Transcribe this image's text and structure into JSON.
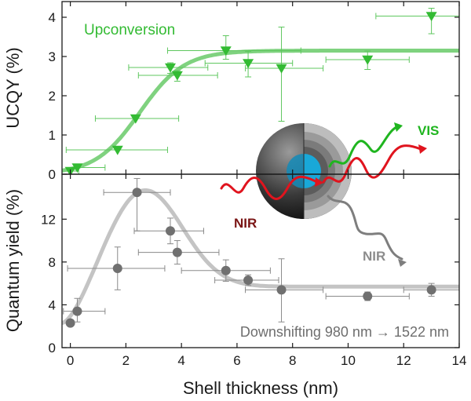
{
  "colors": {
    "green": "#33bb33",
    "green_fit": "#7fd27f",
    "gray": "#707070",
    "gray_fit": "#c4c4c4",
    "dark_red": "#7a1414",
    "red": "#e0141e",
    "vis_green": "#1fb51f",
    "core_blue": "#19a8d8"
  },
  "chart_data": [
    {
      "type": "scatter",
      "panel": "top",
      "xlabel": "Shell thickness (nm)",
      "ylabel": "UCQY (%)",
      "xlim": [
        -0.3,
        14
      ],
      "ylim": [
        0,
        4.4
      ],
      "xticks": [
        0,
        2,
        4,
        6,
        8,
        10,
        12,
        14
      ],
      "yticks": [
        0,
        1,
        2,
        3,
        4
      ],
      "annotation": "Upconversion",
      "series": [
        {
          "marker": "triangle-down",
          "color": "#33bb33",
          "points": [
            {
              "x": 0,
              "y": 0.08,
              "xerr": [
                0,
                0.3
              ],
              "yerr": [
                0,
                0
              ]
            },
            {
              "x": 0.25,
              "y": 0.17,
              "xerr": [
                0,
                1.0
              ],
              "yerr": [
                0,
                0
              ]
            },
            {
              "x": 1.7,
              "y": 0.62,
              "xerr": [
                1.85,
                1.8
              ],
              "yerr": [
                0,
                0
              ]
            },
            {
              "x": 2.35,
              "y": 1.42,
              "xerr": [
                1.45,
                1.55
              ],
              "yerr": [
                0,
                0
              ]
            },
            {
              "x": 3.6,
              "y": 2.72,
              "xerr": [
                1.5,
                1.35
              ],
              "yerr": [
                0.15,
                0.12
              ]
            },
            {
              "x": 3.85,
              "y": 2.52,
              "xerr": [
                1.4,
                1.45
              ],
              "yerr": [
                0.15,
                0.12
              ]
            },
            {
              "x": 5.6,
              "y": 3.15,
              "xerr": [
                2.1,
                2.7
              ],
              "yerr": [
                0.22,
                0.38
              ]
            },
            {
              "x": 6.4,
              "y": 2.83,
              "xerr": [
                1.55,
                1.6
              ],
              "yerr": [
                0.35,
                0.3
              ]
            },
            {
              "x": 7.6,
              "y": 2.7,
              "xerr": [
                1.3,
                1.5
              ],
              "yerr": [
                1.35,
                1.05
              ]
            },
            {
              "x": 10.7,
              "y": 2.92,
              "xerr": [
                1.5,
                1.5
              ],
              "yerr": [
                0.25,
                0.22
              ]
            },
            {
              "x": 13,
              "y": 4.03,
              "xerr": [
                2.0,
                1.0
              ],
              "yerr": [
                0.45,
                0.2
              ]
            }
          ]
        }
      ],
      "fit": {
        "type": "sigmoid",
        "plateau": 3.15,
        "center": 2.5,
        "width": 0.8
      }
    },
    {
      "type": "scatter",
      "panel": "bottom",
      "xlabel": "Shell thickness (nm)",
      "ylabel": "Quantum yield (%)",
      "xlim": [
        -0.3,
        14
      ],
      "ylim": [
        0,
        16.2
      ],
      "xticks": [
        0,
        2,
        4,
        6,
        8,
        10,
        12,
        14
      ],
      "yticks": [
        0,
        4,
        8,
        12
      ],
      "xtick_labels": [
        "0",
        "2",
        "4",
        "6",
        "8",
        "10",
        "12",
        "14"
      ],
      "annotation": "Downshifting 980 nm → 1522 nm",
      "series": [
        {
          "marker": "circle",
          "color": "#707070",
          "points": [
            {
              "x": 0,
              "y": 2.3,
              "xerr": [
                0,
                0
              ],
              "yerr": [
                0,
                0
              ]
            },
            {
              "x": 0.25,
              "y": 3.4,
              "xerr": [
                0.5,
                1.0
              ],
              "yerr": [
                1.0,
                1.2
              ]
            },
            {
              "x": 1.7,
              "y": 7.4,
              "xerr": [
                1.8,
                1.7
              ],
              "yerr": [
                2.0,
                2.0
              ]
            },
            {
              "x": 2.4,
              "y": 14.5,
              "xerr": [
                1.2,
                1.2
              ],
              "yerr": [
                3.6,
                1.3
              ]
            },
            {
              "x": 3.6,
              "y": 10.9,
              "xerr": [
                1.3,
                1.2
              ],
              "yerr": [
                1.2,
                1.2
              ]
            },
            {
              "x": 3.85,
              "y": 8.9,
              "xerr": [
                1.4,
                1.5
              ],
              "yerr": [
                1.1,
                1.1
              ]
            },
            {
              "x": 5.6,
              "y": 7.2,
              "xerr": [
                1.6,
                1.6
              ],
              "yerr": [
                1.0,
                1.0
              ]
            },
            {
              "x": 6.4,
              "y": 6.3,
              "xerr": [
                1.2,
                1.1
              ],
              "yerr": [
                0.5,
                0.5
              ]
            },
            {
              "x": 7.6,
              "y": 5.4,
              "xerr": [
                1.3,
                1.5
              ],
              "yerr": [
                3.0,
                2.9
              ]
            },
            {
              "x": 10.7,
              "y": 4.8,
              "xerr": [
                1.5,
                1.5
              ],
              "yerr": [
                0.4,
                0.4
              ]
            },
            {
              "x": 13,
              "y": 5.4,
              "xerr": [
                1.0,
                1.0
              ],
              "yerr": [
                0.6,
                0.6
              ]
            }
          ]
        }
      ],
      "fit": {
        "type": "peak-decay",
        "peak_x": 2.7,
        "peak_y": 14.7,
        "baseline": 5.7,
        "start_y": 2.3
      }
    }
  ],
  "inset": {
    "labels": {
      "nir_in": "NIR",
      "vis": "VIS",
      "nir_out": "NIR"
    }
  }
}
